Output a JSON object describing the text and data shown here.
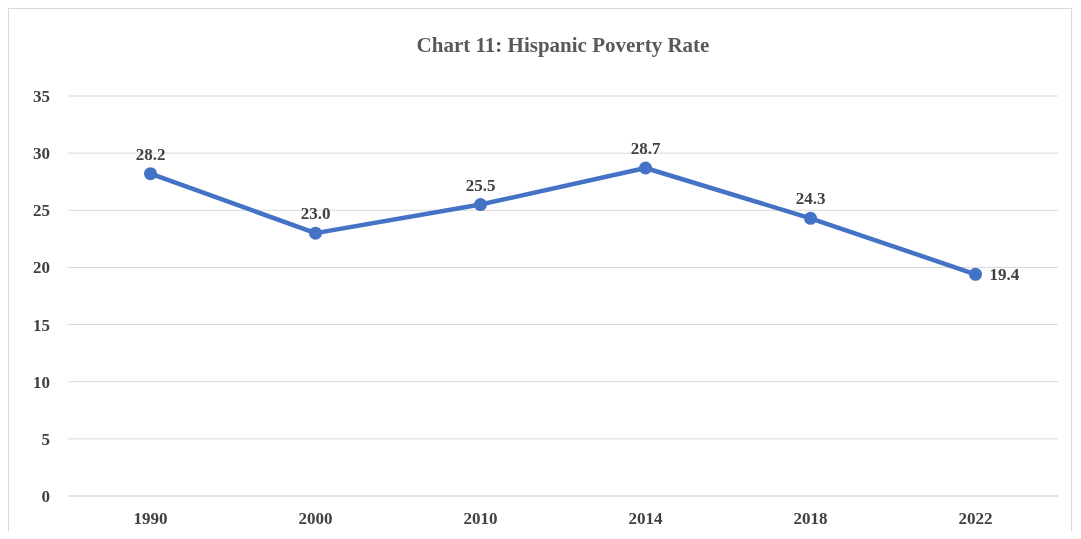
{
  "chart_data": {
    "type": "line",
    "title": "Chart 11: Hispanic Poverty Rate",
    "categories": [
      "1990",
      "2000",
      "2010",
      "2014",
      "2018",
      "2022"
    ],
    "series": [
      {
        "color": "#4472c4",
        "values": [
          28.2,
          23.0,
          25.5,
          28.7,
          24.3,
          19.4
        ],
        "value_labels": [
          "28.2",
          "23.0",
          "25.5",
          "28.7",
          "24.3",
          "19.4"
        ]
      }
    ],
    "ylim": [
      0,
      35
    ],
    "yticks": [
      0,
      5,
      10,
      15,
      20,
      25,
      30,
      35
    ],
    "grid": "y",
    "marker": "circle",
    "line_style": "solid"
  }
}
